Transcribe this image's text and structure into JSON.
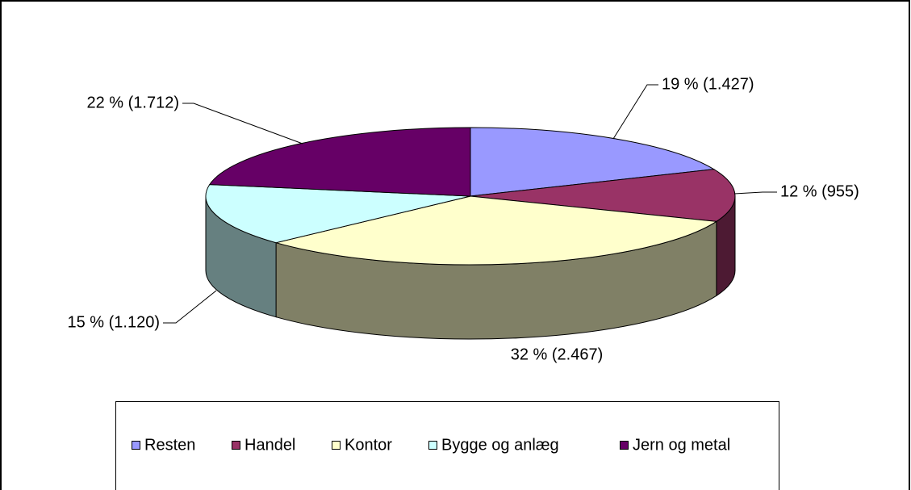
{
  "chart_data": {
    "type": "pie",
    "categories": [
      "Resten",
      "Handel",
      "Kontor",
      "Bygge og anlæg",
      "Jern og metal"
    ],
    "values": [
      1427,
      955,
      2467,
      1120,
      1712
    ],
    "value_labels": [
      "19 % (1.427)",
      "12 % (955)",
      "32 % (2.467)",
      "15 % (1.120)",
      "22 % (1.712)"
    ],
    "colors": [
      "#9999ff",
      "#993366",
      "#ffffcc",
      "#ccffff",
      "#660066"
    ],
    "legend": "bottom"
  }
}
